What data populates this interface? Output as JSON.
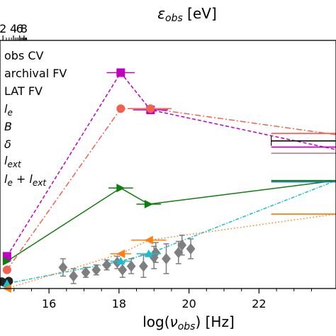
{
  "chart_data": {
    "type": "scatter",
    "title": "",
    "xlabel": "log(ν_obs) [Hz]",
    "xlabel_parts": {
      "pre": "log(",
      "nu": "ν",
      "sub": "obs",
      "post": ") [Hz]"
    },
    "top_xlabel": "ε_obs [eV]",
    "top_xlabel_parts": {
      "eps": "ε",
      "sub": "obs",
      "unit": " [eV]"
    },
    "xlim": [
      14.6,
      24.2
    ],
    "ylim": [
      0,
      10
    ],
    "x_ticks": [
      16,
      18,
      20,
      22
    ],
    "x_tick_labels": [
      "16",
      "18",
      "20",
      "22"
    ],
    "top_ticks_ev": [
      2,
      4,
      6,
      8
    ],
    "top_tick_labels": [
      "2",
      "4",
      "6",
      "8"
    ],
    "grid": false,
    "legend_position": "upper-left",
    "legend": [
      {
        "label": "obs CV",
        "kind": "text"
      },
      {
        "label": "archival FV",
        "kind": "text"
      },
      {
        "label": "LAT FV",
        "kind": "text"
      },
      {
        "label": "l",
        "sub": "e",
        "kind": "math"
      },
      {
        "label": "B",
        "sub": "",
        "kind": "math"
      },
      {
        "label": "δ",
        "sub": "",
        "kind": "math"
      },
      {
        "label": "l",
        "sub": "ext",
        "kind": "math"
      },
      {
        "label": "l",
        "sub": "e",
        "mid": " + l",
        "sub2": "ext",
        "kind": "math2"
      }
    ],
    "series": [
      {
        "color": "#bf00bf",
        "marker": "square",
        "line": "dashed",
        "x": [
          14.8,
          18.05,
          18.9,
          24.2
        ],
        "y": [
          1.3,
          8.7,
          7.2,
          5.6
        ],
        "xerr": [
          0,
          0.4,
          0.5,
          0
        ]
      },
      {
        "color": "#f0624f",
        "marker": "circle",
        "line": "dashdot",
        "x": [
          14.8,
          18.05,
          18.9,
          24.2
        ],
        "y": [
          0.75,
          7.25,
          7.25,
          6.2
        ],
        "xerr": [
          0,
          0,
          0.6,
          0
        ]
      },
      {
        "color": "#0f7d0f",
        "marker": "triangle-right",
        "line": "solid",
        "x": [
          14.8,
          18.05,
          18.85,
          24.2
        ],
        "y": [
          1.1,
          4.05,
          3.4,
          4.35
        ],
        "xerr": [
          0,
          0.35,
          0.35,
          0
        ]
      },
      {
        "color": "#17becf",
        "marker": "triangle-up",
        "line": "dashdot-dense",
        "x": [
          14.8,
          18.05,
          18.85,
          24.2
        ],
        "y": [
          0.2,
          1.1,
          1.4,
          4.35
        ],
        "xerr": [
          0,
          0.3,
          0.35,
          0
        ]
      },
      {
        "color": "#ff7f0e",
        "marker": "triangle-left",
        "line": "dotted",
        "x": [
          14.8,
          18.05,
          18.85,
          24.2
        ],
        "y": [
          0.0,
          1.4,
          1.95,
          3.0
        ],
        "xerr": [
          0,
          0.3,
          0.5,
          0
        ]
      }
    ],
    "obs_cv": {
      "color": "#7f7f7f",
      "x": [
        16.4,
        16.7,
        17.05,
        17.35,
        17.65,
        17.95,
        18.1,
        18.35,
        18.7,
        19.0,
        19.05,
        19.35,
        19.7,
        19.8,
        20.05
      ],
      "y": [
        0.85,
        0.5,
        0.65,
        0.75,
        0.95,
        1.05,
        0.75,
        0.9,
        0.9,
        1.25,
        1.45,
        1.2,
        1.45,
        1.75,
        1.6
      ],
      "yerr": [
        0.35,
        0.3,
        0.2,
        0.2,
        0.2,
        0.25,
        0.3,
        0.3,
        0.45,
        0.45,
        0.4,
        0.6,
        0.45,
        0.4,
        0.4
      ]
    },
    "right_segments": [
      {
        "color": "#ff7f0e",
        "x": [
          22.35,
          24.2
        ],
        "y": [
          3.0,
          3.0
        ]
      },
      {
        "color": "#0f7d0f",
        "x": [
          22.35,
          24.2
        ],
        "y": [
          4.35,
          4.35
        ]
      },
      {
        "color": "#1f77b4",
        "x": [
          22.35,
          24.2
        ],
        "y": [
          4.3,
          4.3
        ]
      },
      {
        "color": "#a98c8c",
        "x": [
          22.35,
          24.2
        ],
        "y": [
          5.45,
          5.45
        ]
      },
      {
        "color": "#bf00bf",
        "x": [
          22.35,
          24.2
        ],
        "y": [
          5.7,
          5.7
        ]
      },
      {
        "color": "#111111",
        "x": [
          22.35,
          24.2
        ],
        "y": [
          5.95,
          5.95
        ]
      },
      {
        "color": "#f0624f",
        "x": [
          22.35,
          24.2
        ],
        "y": [
          6.25,
          6.25
        ]
      }
    ]
  }
}
